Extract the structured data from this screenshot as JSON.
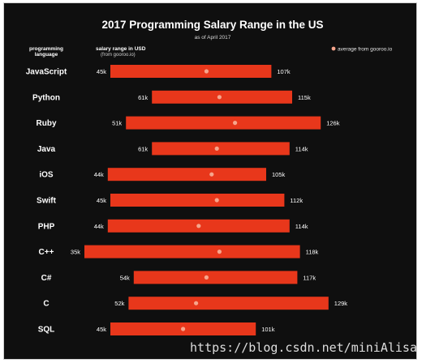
{
  "chart_data": {
    "type": "bar",
    "subtype": "range",
    "title": "2017 Programming Salary Range in the US",
    "subtitle": "as of April 2017",
    "category_header": [
      "programming",
      "language"
    ],
    "value_header": "salary range in USD",
    "value_header_note": "(from gooroo.io)",
    "legend": {
      "label": "average from gooroo.io",
      "placement": "top-right"
    },
    "colors": {
      "bar": "#e8371b",
      "average_dot": "#f6a58c",
      "background": "#0f0f0f"
    },
    "grid": false,
    "categories": [
      "JavaScript",
      "Python",
      "Ruby",
      "Java",
      "iOS",
      "Swift",
      "PHP",
      "C++",
      "C#",
      "C",
      "SQL"
    ],
    "min": [
      45,
      61,
      51,
      61,
      44,
      45,
      44,
      35,
      54,
      52,
      45
    ],
    "max": [
      107,
      115,
      126,
      114,
      105,
      112,
      114,
      118,
      117,
      129,
      101
    ],
    "min_labels": [
      "45k",
      "61k",
      "51k",
      "61k",
      "44k",
      "45k",
      "44k",
      "35k",
      "54k",
      "52k",
      "45k"
    ],
    "max_labels": [
      "107k",
      "115k",
      "126k",
      "114k",
      "105k",
      "112k",
      "114k",
      "118k",
      "117k",
      "129k",
      "101k"
    ],
    "average": [
      82,
      87,
      93,
      86,
      84,
      86,
      79,
      87,
      82,
      78,
      73
    ]
  },
  "watermark": "https://blog.csdn.net/miniAlisa"
}
